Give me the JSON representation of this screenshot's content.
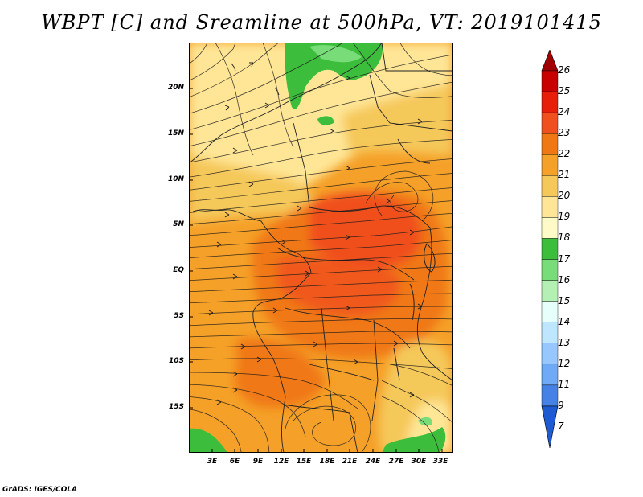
{
  "title": "WBPT [C] and Sreamline at 500hPa, VT: 2019101415",
  "lat_labels": [
    "20N",
    "15N",
    "10N",
    "5N",
    "EQ",
    "5S",
    "10S",
    "15S"
  ],
  "lon_labels": [
    "3E",
    "6E",
    "9E",
    "12E",
    "15E",
    "18E",
    "21E",
    "24E",
    "27E",
    "30E",
    "33E"
  ],
  "colorbar": {
    "labels": [
      "26",
      "25",
      "24",
      "23",
      "22",
      "21",
      "20",
      "19",
      "18",
      "17",
      "16",
      "15",
      "14",
      "13",
      "12",
      "11",
      "9",
      "7"
    ],
    "colors": [
      "#a10000",
      "#c80000",
      "#e61e0a",
      "#f0501e",
      "#f07814",
      "#f5a028",
      "#f5c85a",
      "#ffe696",
      "#fffac8",
      "#3cbe3c",
      "#78dc78",
      "#b4f0b4",
      "#e6fffa",
      "#bee6ff",
      "#96c8ff",
      "#6eaaf5",
      "#4682e6",
      "#1e5ad2"
    ]
  },
  "credit": "GrADS: IGES/COLA"
}
